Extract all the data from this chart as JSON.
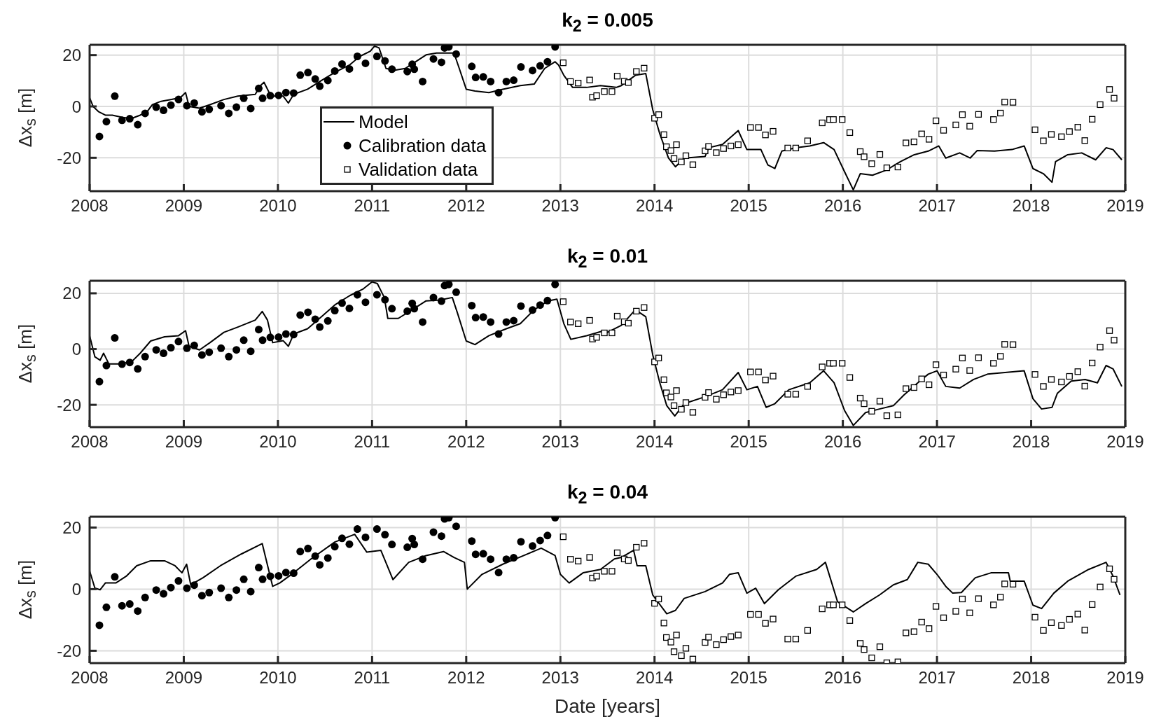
{
  "chart_data": [
    {
      "type": "line",
      "title": "k$_{2}$ = 0.005",
      "ylabel": "Δx$_{s}$ [m]",
      "xlim": [
        2008,
        2019
      ],
      "xticks": [
        2008,
        2009,
        2010,
        2011,
        2012,
        2013,
        2014,
        2015,
        2016,
        2017,
        2018,
        2019
      ],
      "ylim": [
        -33,
        24
      ],
      "yticks": [
        -20,
        0,
        20
      ],
      "grid": true,
      "legend": "bottom left",
      "series": [
        {
          "name": "Model",
          "type": "line",
          "color": "#000000",
          "x": [
            2008.0,
            2008.037,
            2008.093,
            2008.167,
            2008.241,
            2008.352,
            2008.444,
            2008.537,
            2008.611,
            2008.667,
            2008.759,
            2008.87,
            2008.963,
            2009.019,
            2009.056,
            2009.167,
            2009.278,
            2009.426,
            2009.574,
            2009.759,
            2009.815,
            2009.852,
            2009.907,
            2009.944,
            2010.056,
            2010.111,
            2010.167,
            2010.315,
            2010.463,
            2010.611,
            2010.759,
            2010.87,
            2010.981,
            2011.026,
            2011.074,
            2011.148,
            2011.241,
            2011.352,
            2011.463,
            2011.574,
            2011.685,
            2011.796,
            2011.87,
            2011.926,
            2012.0,
            2012.093,
            2012.241,
            2012.389,
            2012.574,
            2012.722,
            2012.833,
            2012.944,
            2012.981,
            2013.037,
            2013.13,
            2013.278,
            2013.426,
            2013.593,
            2013.648,
            2013.796,
            2013.907,
            2013.981,
            2014.056,
            2014.148,
            2014.222,
            2014.315,
            2014.537,
            2014.574,
            2014.722,
            2014.889,
            2014.981,
            2015.13,
            2015.204,
            2015.278,
            2015.352,
            2015.5,
            2015.648,
            2015.796,
            2015.907,
            2016.019,
            2016.111,
            2016.185,
            2016.315,
            2016.463,
            2016.611,
            2016.759,
            2016.907,
            2017.019,
            2017.093,
            2017.241,
            2017.352,
            2017.426,
            2017.611,
            2017.796,
            2017.926,
            2018.019,
            2018.13,
            2018.222,
            2018.259,
            2018.389,
            2018.537,
            2018.685,
            2018.796,
            2018.87,
            2018.963
          ],
          "values": [
            3.4,
            0,
            -2.0,
            -3.4,
            -3.4,
            -4.3,
            -4.7,
            -3.4,
            -2.0,
            0.7,
            2.0,
            2.7,
            3.4,
            5.4,
            0,
            -0.7,
            0.7,
            2.7,
            4.0,
            4.7,
            8.1,
            9.4,
            5.4,
            4.0,
            4.0,
            1.3,
            4.7,
            6.7,
            10.1,
            13.4,
            16.1,
            19.5,
            21.5,
            23.5,
            22.8,
            14.8,
            14.1,
            14.8,
            17.4,
            20.1,
            20.8,
            20.8,
            20.8,
            14.8,
            6.7,
            6.0,
            5.4,
            6.7,
            8.1,
            8.7,
            14.8,
            17.4,
            16.1,
            12.1,
            7.4,
            7.4,
            8.1,
            7.4,
            8.1,
            12.1,
            12.8,
            -1.3,
            -10.7,
            -20.1,
            -23.5,
            -20.1,
            -19.5,
            -16.1,
            -14.8,
            -9.4,
            -16.8,
            -16.8,
            -22.8,
            -24.2,
            -17.4,
            -16.1,
            -15.4,
            -14.1,
            -16.8,
            -25.5,
            -32.5,
            -26.2,
            -26.8,
            -24.8,
            -21.5,
            -18.8,
            -17.4,
            -15.4,
            -20.1,
            -18.1,
            -20.1,
            -17.2,
            -17.4,
            -16.8,
            -15.4,
            -24.2,
            -26.2,
            -29.5,
            -21.5,
            -18.8,
            -18.1,
            -20.8,
            -16.1,
            -16.8,
            -20.8
          ]
        },
        {
          "name": "Calibration data",
          "type": "scatter",
          "marker": "circle",
          "color": "#000000",
          "x": [
            2008.104,
            2008.178,
            2008.267,
            2008.344,
            2008.426,
            2008.511,
            2008.589,
            2008.707,
            2008.785,
            2008.863,
            2008.944,
            2009.033,
            2009.111,
            2009.193,
            2009.27,
            2009.396,
            2009.478,
            2009.559,
            2009.637,
            2009.711,
            2009.796,
            2009.837,
            2009.919,
            2010.007,
            2010.085,
            2010.167,
            2010.237,
            2010.319,
            2010.396,
            2010.444,
            2010.53,
            2010.604,
            2010.681,
            2010.759,
            2010.844,
            2010.93,
            2011.052,
            2011.137,
            2011.211,
            2011.374,
            2011.426,
            2011.448,
            2011.537,
            2011.652,
            2011.737,
            2011.77,
            2011.815,
            2011.893,
            2012.059,
            2012.1,
            2012.181,
            2012.259,
            2012.344,
            2012.426,
            2012.504,
            2012.581,
            2012.704,
            2012.785,
            2012.863,
            2012.944
          ],
          "values": [
            -11.7,
            -5.9,
            4.0,
            -5.4,
            -4.8,
            -7.1,
            -2.7,
            -0.3,
            -1.5,
            0.5,
            2.7,
            0.3,
            1.3,
            -2.1,
            -1.1,
            0.3,
            -2.7,
            -0.3,
            3.2,
            -0.8,
            7.0,
            3.2,
            4.2,
            4.3,
            5.4,
            5.2,
            12.2,
            13.2,
            10.7,
            7.9,
            10.1,
            13.8,
            16.5,
            14.6,
            19.5,
            16.8,
            19.5,
            17.7,
            14.5,
            13.6,
            16.4,
            14.5,
            9.7,
            18.5,
            17.2,
            22.8,
            23.2,
            20.4,
            15.6,
            11.3,
            11.5,
            9.7,
            5.4,
            9.7,
            10.2,
            15.4,
            14.0,
            15.8,
            17.4,
            23.2
          ]
        },
        {
          "name": "Validation data",
          "type": "scatter",
          "marker": "square",
          "color": "#000000",
          "x": [
            2013.03,
            2013.107,
            2013.189,
            2013.311,
            2013.341,
            2013.385,
            2013.467,
            2013.548,
            2013.604,
            2013.678,
            2013.722,
            2013.807,
            2013.889,
            2014.0,
            2014.044,
            2014.1,
            2014.126,
            2014.174,
            2014.207,
            2014.233,
            2014.285,
            2014.333,
            2014.407,
            2014.537,
            2014.574,
            2014.656,
            2014.733,
            2014.811,
            2014.889,
            2015.019,
            2015.104,
            2015.178,
            2015.259,
            2015.415,
            2015.5,
            2015.626,
            2015.781,
            2015.859,
            2015.9,
            2015.993,
            2016.074,
            2016.185,
            2016.226,
            2016.307,
            2016.393,
            2016.467,
            2016.585,
            2016.67,
            2016.756,
            2016.837,
            2016.915,
            2016.989,
            2017.07,
            2017.2,
            2017.27,
            2017.348,
            2017.441,
            2017.6,
            2017.674,
            2017.719,
            2017.807,
            2018.041,
            2018.13,
            2018.215,
            2018.322,
            2018.407,
            2018.496,
            2018.57,
            2018.648,
            2018.733,
            2018.833,
            2018.881
          ],
          "values": [
            17.0,
            9.7,
            9.1,
            10.3,
            3.6,
            4.2,
            5.8,
            5.8,
            11.8,
            9.8,
            9.3,
            13.6,
            14.9,
            -4.6,
            -3.2,
            -11.0,
            -15.7,
            -17.2,
            -20.3,
            -14.9,
            -21.6,
            -19.2,
            -22.7,
            -17.3,
            -15.6,
            -18.0,
            -16.4,
            -15.4,
            -14.9,
            -8.2,
            -8.2,
            -11.1,
            -9.7,
            -16.2,
            -16.2,
            -13.4,
            -6.4,
            -5.1,
            -5.1,
            -5.1,
            -10.2,
            -17.6,
            -19.6,
            -22.3,
            -18.7,
            -23.9,
            -23.6,
            -14.2,
            -13.8,
            -10.7,
            -12.8,
            -5.6,
            -9.3,
            -7.2,
            -3.2,
            -7.7,
            -3.1,
            -5.1,
            -2.6,
            1.7,
            1.6,
            -9.1,
            -13.4,
            -10.9,
            -11.8,
            -9.8,
            -8.1,
            -13.3,
            -5.0,
            0.7,
            6.6,
            3.2
          ]
        }
      ]
    },
    {
      "type": "line",
      "title": "k$_{2}$ = 0.01",
      "ylabel": "Δx$_{s}$ [m]",
      "xlim": [
        2008,
        2019
      ],
      "xticks": [
        2008,
        2009,
        2010,
        2011,
        2012,
        2013,
        2014,
        2015,
        2016,
        2017,
        2018,
        2019
      ],
      "ylim": [
        -28,
        24.5
      ],
      "yticks": [
        -20,
        0,
        20
      ],
      "grid": true,
      "series": [
        {
          "type": "line",
          "color": "#000000",
          "x": [
            2008.0,
            2008.056,
            2008.111,
            2008.148,
            2008.204,
            2008.315,
            2008.444,
            2008.537,
            2008.648,
            2008.796,
            2008.944,
            2009.019,
            2009.056,
            2009.167,
            2009.278,
            2009.426,
            2009.574,
            2009.759,
            2009.833,
            2009.889,
            2009.944,
            2010.056,
            2010.111,
            2010.167,
            2010.315,
            2010.463,
            2010.611,
            2010.759,
            2010.907,
            2011.0,
            2011.056,
            2011.13,
            2011.167,
            2011.278,
            2011.426,
            2011.574,
            2011.722,
            2011.852,
            2011.907,
            2012.0,
            2012.093,
            2012.241,
            2012.426,
            2012.574,
            2012.722,
            2012.87,
            2012.963,
            2013.037,
            2013.111,
            2013.278,
            2013.463,
            2013.5,
            2013.648,
            2013.796,
            2013.907,
            2013.981,
            2014.056,
            2014.13,
            2014.215,
            2014.315,
            2014.537,
            2014.722,
            2014.889,
            2014.981,
            2015.093,
            2015.185,
            2015.278,
            2015.426,
            2015.648,
            2015.796,
            2015.907,
            2016.019,
            2016.111,
            2016.241,
            2016.389,
            2016.537,
            2016.648,
            2016.796,
            2016.907,
            2017.0,
            2017.093,
            2017.241,
            2017.389,
            2017.537,
            2017.722,
            2017.926,
            2018.019,
            2018.111,
            2018.222,
            2018.278,
            2018.426,
            2018.574,
            2018.704,
            2018.796,
            2018.87,
            2018.963
          ],
          "values": [
            4.8,
            -2.8,
            -4.0,
            -1.5,
            -5.3,
            -5.3,
            -4.6,
            -1.5,
            2.9,
            4.4,
            4.8,
            6.6,
            1.0,
            -0.3,
            2.3,
            6.0,
            7.9,
            10.4,
            13.5,
            10.4,
            2.3,
            3.0,
            1.0,
            5.4,
            7.3,
            11.6,
            16.0,
            19.1,
            21.6,
            24.1,
            23.5,
            18.5,
            11.0,
            11.0,
            14.1,
            17.3,
            17.6,
            18.5,
            12.9,
            2.9,
            1.6,
            4.8,
            7.3,
            9.1,
            14.1,
            17.3,
            17.9,
            9.1,
            3.5,
            4.8,
            6.6,
            6.0,
            8.5,
            14.1,
            11.6,
            -2.1,
            -12.1,
            -20.3,
            -24.0,
            -19.6,
            -17.1,
            -14.6,
            -8.4,
            -14.6,
            -13.4,
            -20.9,
            -19.6,
            -14.6,
            -12.1,
            -7.8,
            -12.1,
            -22.1,
            -27.4,
            -22.8,
            -21.5,
            -20.3,
            -16.5,
            -12.1,
            -9.0,
            -7.8,
            -13.4,
            -14.0,
            -10.9,
            -9.0,
            -8.4,
            -7.8,
            -17.8,
            -21.5,
            -20.9,
            -15.9,
            -11.5,
            -10.9,
            -12.1,
            -5.9,
            -7.1,
            -13.4
          ]
        },
        {
          "type": "scatter",
          "marker": "circle",
          "color": "#000000",
          "x": [
            2008.104,
            2008.178,
            2008.267,
            2008.344,
            2008.426,
            2008.511,
            2008.589,
            2008.707,
            2008.785,
            2008.863,
            2008.944,
            2009.033,
            2009.111,
            2009.193,
            2009.27,
            2009.396,
            2009.478,
            2009.559,
            2009.637,
            2009.711,
            2009.796,
            2009.837,
            2009.919,
            2010.007,
            2010.085,
            2010.167,
            2010.237,
            2010.319,
            2010.396,
            2010.444,
            2010.53,
            2010.604,
            2010.681,
            2010.759,
            2010.844,
            2010.93,
            2011.052,
            2011.137,
            2011.211,
            2011.374,
            2011.426,
            2011.448,
            2011.537,
            2011.652,
            2011.737,
            2011.77,
            2011.815,
            2011.893,
            2012.059,
            2012.1,
            2012.181,
            2012.259,
            2012.344,
            2012.426,
            2012.504,
            2012.581,
            2012.704,
            2012.785,
            2012.863,
            2012.944
          ],
          "values": [
            -11.7,
            -5.9,
            4.0,
            -5.4,
            -4.8,
            -7.1,
            -2.7,
            -0.3,
            -1.5,
            0.5,
            2.7,
            0.3,
            1.3,
            -2.1,
            -1.1,
            0.3,
            -2.7,
            -0.3,
            3.2,
            -0.8,
            7.0,
            3.2,
            4.2,
            4.3,
            5.4,
            5.2,
            12.2,
            13.2,
            10.7,
            7.9,
            10.1,
            13.8,
            16.5,
            14.6,
            19.5,
            16.8,
            19.5,
            17.7,
            14.5,
            13.6,
            16.4,
            14.5,
            9.7,
            18.5,
            17.2,
            22.8,
            23.2,
            20.4,
            15.6,
            11.3,
            11.5,
            9.7,
            5.4,
            9.7,
            10.2,
            15.4,
            14.0,
            15.8,
            17.4,
            23.2
          ]
        },
        {
          "type": "scatter",
          "marker": "square",
          "color": "#000000",
          "x": [
            2013.03,
            2013.107,
            2013.189,
            2013.311,
            2013.341,
            2013.385,
            2013.467,
            2013.548,
            2013.604,
            2013.678,
            2013.722,
            2013.807,
            2013.889,
            2014.0,
            2014.044,
            2014.1,
            2014.126,
            2014.174,
            2014.207,
            2014.233,
            2014.285,
            2014.333,
            2014.407,
            2014.537,
            2014.574,
            2014.656,
            2014.733,
            2014.811,
            2014.889,
            2015.019,
            2015.104,
            2015.178,
            2015.259,
            2015.415,
            2015.5,
            2015.626,
            2015.781,
            2015.859,
            2015.9,
            2015.993,
            2016.074,
            2016.185,
            2016.226,
            2016.307,
            2016.393,
            2016.467,
            2016.585,
            2016.67,
            2016.756,
            2016.837,
            2016.915,
            2016.989,
            2017.07,
            2017.2,
            2017.27,
            2017.348,
            2017.441,
            2017.6,
            2017.674,
            2017.719,
            2017.807,
            2018.041,
            2018.13,
            2018.215,
            2018.322,
            2018.407,
            2018.496,
            2018.57,
            2018.648,
            2018.733,
            2018.833,
            2018.881
          ],
          "values": [
            17.0,
            9.7,
            9.1,
            10.3,
            3.6,
            4.2,
            5.8,
            5.8,
            11.8,
            9.8,
            9.3,
            13.6,
            14.9,
            -4.6,
            -3.2,
            -11.0,
            -15.7,
            -17.2,
            -20.3,
            -14.9,
            -21.6,
            -19.2,
            -22.7,
            -17.3,
            -15.6,
            -18.0,
            -16.4,
            -15.4,
            -14.9,
            -8.2,
            -8.2,
            -11.1,
            -9.7,
            -16.2,
            -16.2,
            -13.4,
            -6.4,
            -5.1,
            -5.1,
            -5.1,
            -10.2,
            -17.6,
            -19.6,
            -22.3,
            -18.7,
            -23.9,
            -23.6,
            -14.2,
            -13.8,
            -10.7,
            -12.8,
            -5.6,
            -9.3,
            -7.2,
            -3.2,
            -7.7,
            -3.1,
            -5.1,
            -2.6,
            1.7,
            1.6,
            -9.1,
            -13.4,
            -10.9,
            -11.8,
            -9.8,
            -8.1,
            -13.3,
            -5.0,
            0.7,
            6.6,
            3.2
          ]
        }
      ]
    },
    {
      "type": "line",
      "title": "k$_{2}$ = 0.04",
      "ylabel": "Δx$_{s}$ [m]",
      "xlabel": "Date [years]",
      "xlim": [
        2008,
        2019
      ],
      "xticks": [
        2008,
        2009,
        2010,
        2011,
        2012,
        2013,
        2014,
        2015,
        2016,
        2017,
        2018,
        2019
      ],
      "ylim": [
        -24,
        23.5
      ],
      "yticks": [
        -20,
        0,
        20
      ],
      "grid": true,
      "series": [
        {
          "type": "line",
          "color": "#000000",
          "x": [
            2008.0,
            2008.056,
            2008.111,
            2008.167,
            2008.278,
            2008.389,
            2008.5,
            2008.648,
            2008.796,
            2008.907,
            2008.981,
            2009.03,
            2009.074,
            2009.204,
            2009.389,
            2009.611,
            2009.833,
            2009.944,
            2010.019,
            2010.167,
            2010.352,
            2010.604,
            2010.815,
            2010.944,
            2011.093,
            2011.222,
            2011.389,
            2011.574,
            2011.759,
            2011.87,
            2011.981,
            2012.011,
            2012.167,
            2012.389,
            2012.611,
            2012.796,
            2012.944,
            2013.0,
            2013.093,
            2013.241,
            2013.426,
            2013.574,
            2013.648,
            2013.778,
            2013.815,
            2013.907,
            2013.981,
            2014.13,
            2014.222,
            2014.315,
            2014.537,
            2014.722,
            2014.796,
            2014.889,
            2014.981,
            2015.074,
            2015.167,
            2015.315,
            2015.5,
            2015.722,
            2015.815,
            2015.944,
            2016.111,
            2016.241,
            2016.389,
            2016.537,
            2016.685,
            2016.796,
            2016.907,
            2017.0,
            2017.093,
            2017.167,
            2017.259,
            2017.407,
            2017.574,
            2017.759,
            2017.778,
            2017.926,
            2018.019,
            2018.111,
            2018.241,
            2018.389,
            2018.611,
            2018.796,
            2018.87,
            2018.944
          ],
          "values": [
            5.9,
            0.3,
            -0.2,
            2.0,
            2.0,
            4.2,
            7.6,
            9.2,
            9.2,
            7.6,
            5.3,
            8.1,
            1.4,
            3.7,
            7.6,
            11.4,
            14.8,
            0.9,
            2.0,
            5.3,
            9.8,
            15.3,
            17.8,
            12.0,
            12.6,
            3.1,
            8.7,
            10.9,
            12.2,
            10.3,
            8.7,
            0,
            4.8,
            8.1,
            10.9,
            13.3,
            10.9,
            4.8,
            2.0,
            5.3,
            6.4,
            9.8,
            10.3,
            12.6,
            7.6,
            7.6,
            -1.9,
            -8.0,
            -6.9,
            -3.0,
            -0.8,
            2.0,
            4.8,
            5.3,
            -1.3,
            0.3,
            -4.7,
            -0.2,
            4.2,
            6.4,
            8.7,
            -4.1,
            -7.4,
            -4.7,
            -1.9,
            1.4,
            3.1,
            8.7,
            8.1,
            4.8,
            0.9,
            -1.3,
            -1.1,
            3.7,
            5.3,
            5.3,
            2.6,
            2.6,
            -5.2,
            -6.3,
            -1.3,
            2.6,
            6.4,
            8.7,
            4.2,
            -1.9
          ]
        },
        {
          "type": "scatter",
          "marker": "circle",
          "color": "#000000",
          "x": [
            2008.104,
            2008.178,
            2008.267,
            2008.344,
            2008.426,
            2008.511,
            2008.589,
            2008.707,
            2008.785,
            2008.863,
            2008.944,
            2009.033,
            2009.111,
            2009.193,
            2009.27,
            2009.396,
            2009.478,
            2009.559,
            2009.637,
            2009.711,
            2009.796,
            2009.837,
            2009.919,
            2010.007,
            2010.085,
            2010.167,
            2010.237,
            2010.319,
            2010.396,
            2010.444,
            2010.53,
            2010.604,
            2010.681,
            2010.759,
            2010.844,
            2010.93,
            2011.052,
            2011.137,
            2011.211,
            2011.374,
            2011.426,
            2011.448,
            2011.537,
            2011.652,
            2011.737,
            2011.77,
            2011.815,
            2011.893,
            2012.059,
            2012.1,
            2012.181,
            2012.259,
            2012.344,
            2012.426,
            2012.504,
            2012.581,
            2012.704,
            2012.785,
            2012.863,
            2012.944
          ],
          "values": [
            -11.7,
            -5.9,
            4.0,
            -5.4,
            -4.8,
            -7.1,
            -2.7,
            -0.3,
            -1.5,
            0.5,
            2.7,
            0.3,
            1.3,
            -2.1,
            -1.1,
            0.3,
            -2.7,
            -0.3,
            3.2,
            -0.8,
            7.0,
            3.2,
            4.2,
            4.3,
            5.4,
            5.2,
            12.2,
            13.2,
            10.7,
            7.9,
            10.1,
            13.8,
            16.5,
            14.6,
            19.5,
            16.8,
            19.5,
            17.7,
            14.5,
            13.6,
            16.4,
            14.5,
            9.7,
            18.5,
            17.2,
            22.8,
            23.2,
            20.4,
            15.6,
            11.3,
            11.5,
            9.7,
            5.4,
            9.7,
            10.2,
            15.4,
            14.0,
            15.8,
            17.4,
            23.2
          ]
        },
        {
          "type": "scatter",
          "marker": "square",
          "color": "#000000",
          "x": [
            2013.03,
            2013.107,
            2013.189,
            2013.311,
            2013.341,
            2013.385,
            2013.467,
            2013.548,
            2013.604,
            2013.678,
            2013.722,
            2013.807,
            2013.889,
            2014.0,
            2014.044,
            2014.1,
            2014.126,
            2014.174,
            2014.207,
            2014.233,
            2014.285,
            2014.333,
            2014.407,
            2014.537,
            2014.574,
            2014.656,
            2014.733,
            2014.811,
            2014.889,
            2015.019,
            2015.104,
            2015.178,
            2015.259,
            2015.415,
            2015.5,
            2015.626,
            2015.781,
            2015.859,
            2015.9,
            2015.993,
            2016.074,
            2016.185,
            2016.226,
            2016.307,
            2016.393,
            2016.467,
            2016.585,
            2016.67,
            2016.756,
            2016.837,
            2016.915,
            2016.989,
            2017.07,
            2017.2,
            2017.27,
            2017.348,
            2017.441,
            2017.6,
            2017.674,
            2017.719,
            2017.807,
            2018.041,
            2018.13,
            2018.215,
            2018.322,
            2018.407,
            2018.496,
            2018.57,
            2018.648,
            2018.733,
            2018.833,
            2018.881
          ],
          "values": [
            17.0,
            9.7,
            9.1,
            10.3,
            3.6,
            4.2,
            5.8,
            5.8,
            11.8,
            9.8,
            9.3,
            13.6,
            14.9,
            -4.6,
            -3.2,
            -11.0,
            -15.7,
            -17.2,
            -20.3,
            -14.9,
            -21.6,
            -19.2,
            -22.7,
            -17.3,
            -15.6,
            -18.0,
            -16.4,
            -15.4,
            -14.9,
            -8.2,
            -8.2,
            -11.1,
            -9.7,
            -16.2,
            -16.2,
            -13.4,
            -6.4,
            -5.1,
            -5.1,
            -5.1,
            -10.2,
            -17.6,
            -19.6,
            -22.3,
            -18.7,
            -23.9,
            -23.6,
            -14.2,
            -13.8,
            -10.7,
            -12.8,
            -5.6,
            -9.3,
            -7.2,
            -3.2,
            -7.7,
            -3.1,
            -5.1,
            -2.6,
            1.7,
            1.6,
            -9.1,
            -13.4,
            -10.9,
            -11.8,
            -9.8,
            -8.1,
            -13.3,
            -5.0,
            0.7,
            6.6,
            3.2
          ]
        }
      ]
    }
  ]
}
